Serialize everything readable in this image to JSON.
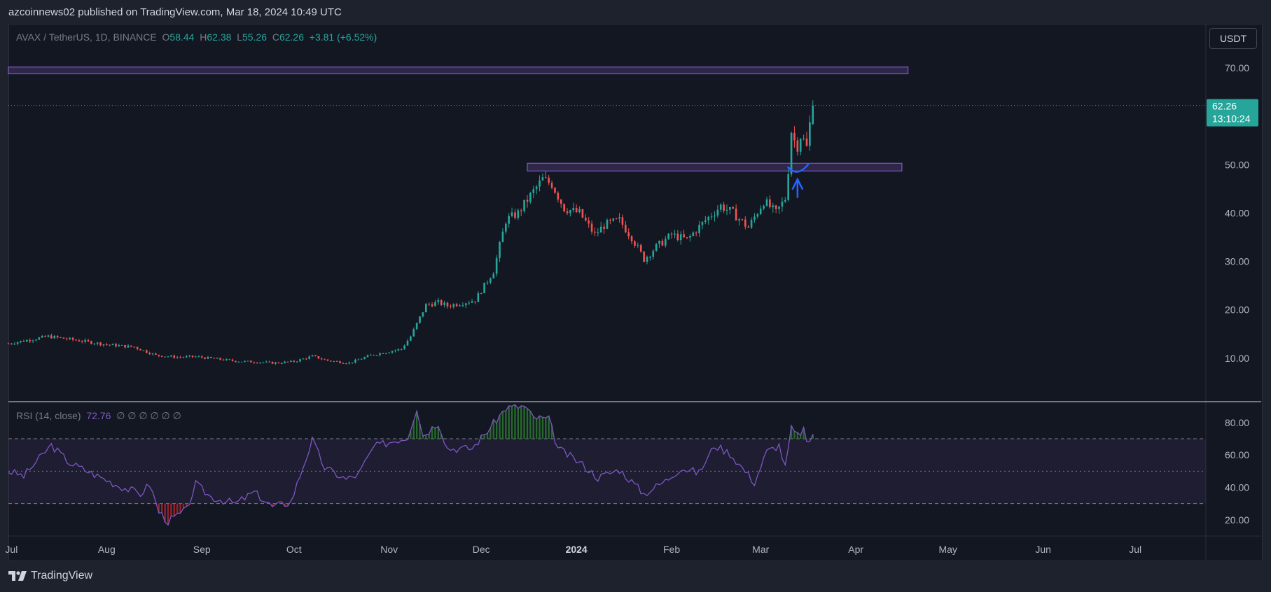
{
  "header": {
    "published_by": "azcoinnews02 published on TradingView.com, Mar 18, 2024 10:49 UTC"
  },
  "legend": {
    "symbol": "AVAX / TetherUS, 1D, BINANCE",
    "open_label": "O",
    "open": "58.44",
    "high_label": "H",
    "high": "62.38",
    "low_label": "L",
    "low": "55.26",
    "close_label": "C",
    "close": "62.26",
    "change": "+3.81 (+6.52%)"
  },
  "rsi_legend": {
    "label": "RSI (14, close)",
    "value": "72.76",
    "placeholders": "∅ ∅ ∅ ∅ ∅ ∅"
  },
  "currency_button": "USDT",
  "price_badge": {
    "price": "62.26",
    "countdown": "13:10:24"
  },
  "footer": {
    "brand": "TradingView"
  },
  "colors": {
    "up": "#26a69a",
    "down": "#ef5350",
    "zone": "#7e57c2",
    "rsi_line": "#7e57c2",
    "rsi_overbought_fill": "#2e7d32",
    "rsi_oversold_fill": "#b22833",
    "arrow": "#2962ff"
  },
  "chart_data": {
    "type": "candlestick",
    "symbol": "AVAX/USDT",
    "interval": "1D",
    "y_ticks": [
      "70.00",
      "50.00",
      "40.00",
      "30.00",
      "20.00",
      "10.00"
    ],
    "x_ticks": [
      "Jul",
      "Aug",
      "Sep",
      "Oct",
      "Nov",
      "Dec",
      "2024",
      "Feb",
      "Mar",
      "Apr",
      "May",
      "Jun",
      "Jul"
    ],
    "x_tick_dates": [
      "2023-07-01",
      "2023-08-01",
      "2023-09-01",
      "2023-10-01",
      "2023-11-01",
      "2023-12-01",
      "2024-01-01",
      "2024-02-01",
      "2024-03-01",
      "2024-04-01",
      "2024-05-01",
      "2024-06-01",
      "2024-07-01"
    ],
    "price_range": [
      1,
      79
    ],
    "last_price": 62.26,
    "close_trajectory": [
      {
        "date": "2023-06-30",
        "close": 13.0
      },
      {
        "date": "2023-07-13",
        "close": 14.5
      },
      {
        "date": "2023-07-20",
        "close": 13.9
      },
      {
        "date": "2023-08-01",
        "close": 12.8
      },
      {
        "date": "2023-08-10",
        "close": 12.3
      },
      {
        "date": "2023-08-17",
        "close": 10.6
      },
      {
        "date": "2023-08-24",
        "close": 10.2
      },
      {
        "date": "2023-08-30",
        "close": 10.3
      },
      {
        "date": "2023-09-12",
        "close": 9.4
      },
      {
        "date": "2023-09-25",
        "close": 9.0
      },
      {
        "date": "2023-10-01",
        "close": 9.3
      },
      {
        "date": "2023-10-07",
        "close": 10.4
      },
      {
        "date": "2023-10-12",
        "close": 9.5
      },
      {
        "date": "2023-10-19",
        "close": 9.0
      },
      {
        "date": "2023-10-26",
        "close": 10.6
      },
      {
        "date": "2023-11-05",
        "close": 11.9
      },
      {
        "date": "2023-11-08",
        "close": 14.5
      },
      {
        "date": "2023-11-13",
        "close": 21.0
      },
      {
        "date": "2023-11-17",
        "close": 21.5
      },
      {
        "date": "2023-11-20",
        "close": 20.8
      },
      {
        "date": "2023-11-29",
        "close": 22.0
      },
      {
        "date": "2023-12-05",
        "close": 28.0
      },
      {
        "date": "2023-12-09",
        "close": 38.5
      },
      {
        "date": "2023-12-13",
        "close": 40.0
      },
      {
        "date": "2023-12-18",
        "close": 44.5
      },
      {
        "date": "2023-12-21",
        "close": 47.0
      },
      {
        "date": "2023-12-24",
        "close": 46.0
      },
      {
        "date": "2023-12-28",
        "close": 41.0
      },
      {
        "date": "2024-01-02",
        "close": 40.0
      },
      {
        "date": "2024-01-07",
        "close": 35.5
      },
      {
        "date": "2024-01-10",
        "close": 37.5
      },
      {
        "date": "2024-01-15",
        "close": 38.5
      },
      {
        "date": "2024-01-19",
        "close": 35.0
      },
      {
        "date": "2024-01-23",
        "close": 30.5
      },
      {
        "date": "2024-01-27",
        "close": 33.0
      },
      {
        "date": "2024-02-01",
        "close": 35.5
      },
      {
        "date": "2024-02-06",
        "close": 34.5
      },
      {
        "date": "2024-02-12",
        "close": 38.5
      },
      {
        "date": "2024-02-17",
        "close": 41.5
      },
      {
        "date": "2024-02-21",
        "close": 40.0
      },
      {
        "date": "2024-02-26",
        "close": 37.0
      },
      {
        "date": "2024-03-02",
        "close": 42.5
      },
      {
        "date": "2024-03-06",
        "close": 40.0
      },
      {
        "date": "2024-03-09",
        "close": 43.0
      },
      {
        "date": "2024-03-10",
        "close": 49.0
      },
      {
        "date": "2024-03-11",
        "close": 57.0
      },
      {
        "date": "2024-03-12",
        "close": 55.0
      },
      {
        "date": "2024-03-13",
        "close": 54.0
      },
      {
        "date": "2024-03-14",
        "close": 56.0
      },
      {
        "date": "2024-03-15",
        "close": 55.0
      },
      {
        "date": "2024-03-16",
        "close": 53.5
      },
      {
        "date": "2024-03-17",
        "close": 58.44
      },
      {
        "date": "2024-03-18",
        "close": 62.26
      }
    ],
    "zones": [
      {
        "start": "2023-06-30",
        "end": "2024-04-18",
        "low": 68.8,
        "high": 70.2
      },
      {
        "start": "2023-12-16",
        "end": "2024-04-16",
        "low": 48.7,
        "high": 50.3
      }
    ],
    "rsi": {
      "period": 14,
      "last": 72.76,
      "ticks": [
        "80.00",
        "60.00",
        "40.00",
        "20.00"
      ],
      "levels": [
        70,
        50,
        30
      ],
      "range": [
        10,
        92
      ],
      "trajectory": [
        {
          "date": "2023-06-30",
          "value": 50
        },
        {
          "date": "2023-07-05",
          "value": 47
        },
        {
          "date": "2023-07-12",
          "value": 62
        },
        {
          "date": "2023-07-14",
          "value": 66
        },
        {
          "date": "2023-07-20",
          "value": 55
        },
        {
          "date": "2023-07-28",
          "value": 48
        },
        {
          "date": "2023-08-05",
          "value": 41
        },
        {
          "date": "2023-08-12",
          "value": 36
        },
        {
          "date": "2023-08-15",
          "value": 42
        },
        {
          "date": "2023-08-18",
          "value": 25
        },
        {
          "date": "2023-08-21",
          "value": 19
        },
        {
          "date": "2023-08-27",
          "value": 26
        },
        {
          "date": "2023-08-30",
          "value": 42
        },
        {
          "date": "2023-09-04",
          "value": 34
        },
        {
          "date": "2023-09-12",
          "value": 30
        },
        {
          "date": "2023-09-18",
          "value": 37
        },
        {
          "date": "2023-09-24",
          "value": 28
        },
        {
          "date": "2023-09-30",
          "value": 31
        },
        {
          "date": "2023-10-04",
          "value": 53
        },
        {
          "date": "2023-10-07",
          "value": 69
        },
        {
          "date": "2023-10-11",
          "value": 52
        },
        {
          "date": "2023-10-18",
          "value": 45
        },
        {
          "date": "2023-10-22",
          "value": 48
        },
        {
          "date": "2023-10-27",
          "value": 65
        },
        {
          "date": "2023-11-03",
          "value": 69
        },
        {
          "date": "2023-11-07",
          "value": 71
        },
        {
          "date": "2023-11-10",
          "value": 89
        },
        {
          "date": "2023-11-12",
          "value": 72
        },
        {
          "date": "2023-11-17",
          "value": 80
        },
        {
          "date": "2023-11-20",
          "value": 64
        },
        {
          "date": "2023-11-28",
          "value": 64
        },
        {
          "date": "2023-12-04",
          "value": 77
        },
        {
          "date": "2023-12-09",
          "value": 89
        },
        {
          "date": "2023-12-15",
          "value": 90
        },
        {
          "date": "2023-12-18",
          "value": 83
        },
        {
          "date": "2023-12-23",
          "value": 82
        },
        {
          "date": "2023-12-26",
          "value": 64
        },
        {
          "date": "2024-01-03",
          "value": 54
        },
        {
          "date": "2024-01-08",
          "value": 46
        },
        {
          "date": "2024-01-15",
          "value": 51
        },
        {
          "date": "2024-01-23",
          "value": 36
        },
        {
          "date": "2024-01-30",
          "value": 44
        },
        {
          "date": "2024-02-04",
          "value": 52
        },
        {
          "date": "2024-02-10",
          "value": 49
        },
        {
          "date": "2024-02-15",
          "value": 66
        },
        {
          "date": "2024-02-20",
          "value": 61
        },
        {
          "date": "2024-02-28",
          "value": 43
        },
        {
          "date": "2024-03-03",
          "value": 62
        },
        {
          "date": "2024-03-07",
          "value": 66
        },
        {
          "date": "2024-03-09",
          "value": 52
        },
        {
          "date": "2024-03-11",
          "value": 76
        },
        {
          "date": "2024-03-13",
          "value": 72
        },
        {
          "date": "2024-03-15",
          "value": 76
        },
        {
          "date": "2024-03-16",
          "value": 66
        },
        {
          "date": "2024-03-18",
          "value": 72.76
        }
      ]
    }
  }
}
